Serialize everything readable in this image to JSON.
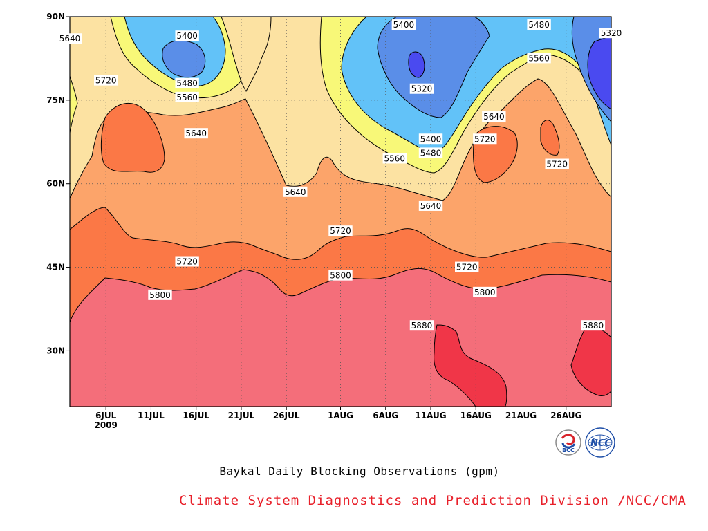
{
  "chart_data": {
    "type": "heatmap",
    "subtype": "filled-contour",
    "title": "Baykal Daily Blocking Observations (gpm)",
    "x_tick_labels": [
      "6JUL",
      "11JUL",
      "16JUL",
      "21JUL",
      "26JUL",
      "1AUG",
      "6AUG",
      "11AUG",
      "16AUG",
      "21AUG",
      "26AUG"
    ],
    "x_year_label": "2009",
    "x_range": [
      "2009-07-02",
      "2009-08-31"
    ],
    "y_tick_labels": [
      "90N",
      "75N",
      "60N",
      "45N",
      "30N"
    ],
    "y_ticks": [
      90,
      75,
      60,
      45,
      30
    ],
    "y_range": [
      20,
      90
    ],
    "grid": "dotted",
    "contour_levels": [
      5320,
      5400,
      5480,
      5560,
      5640,
      5720,
      5800,
      5880
    ],
    "fill_colors": {
      "below_5320": "#4a4af0",
      "5320_5400": "#5a8ee8",
      "5400_5480": "#62c2f8",
      "5480_5560": "#f8f878",
      "5560_5640": "#fce2a2",
      "5640_5720": "#fca46a",
      "5720_5800": "#fb7846",
      "5800_5880": "#f46e7a",
      "above_5880": "#f03648"
    },
    "contour_labels": [
      {
        "date": "2009-07-02",
        "lat": 86.0,
        "value": "5640"
      },
      {
        "date": "2009-07-06",
        "lat": 78.5,
        "value": "5720"
      },
      {
        "date": "2009-07-15",
        "lat": 86.5,
        "value": "5400"
      },
      {
        "date": "2009-07-15",
        "lat": 78.0,
        "value": "5480"
      },
      {
        "date": "2009-07-15",
        "lat": 75.5,
        "value": "5560"
      },
      {
        "date": "2009-07-16",
        "lat": 69.0,
        "value": "5640"
      },
      {
        "date": "2009-07-15",
        "lat": 46.0,
        "value": "5720"
      },
      {
        "date": "2009-07-12",
        "lat": 40.0,
        "value": "5800"
      },
      {
        "date": "2009-07-27",
        "lat": 58.5,
        "value": "5640"
      },
      {
        "date": "2009-08-01",
        "lat": 51.5,
        "value": "5720"
      },
      {
        "date": "2009-08-01",
        "lat": 43.5,
        "value": "5800"
      },
      {
        "date": "2009-08-08",
        "lat": 88.5,
        "value": "5400"
      },
      {
        "date": "2009-08-10",
        "lat": 77.0,
        "value": "5320"
      },
      {
        "date": "2009-08-07",
        "lat": 64.5,
        "value": "5560"
      },
      {
        "date": "2009-08-11",
        "lat": 68.0,
        "value": "5400"
      },
      {
        "date": "2009-08-11",
        "lat": 65.5,
        "value": "5480"
      },
      {
        "date": "2009-08-11",
        "lat": 56.0,
        "value": "5640"
      },
      {
        "date": "2009-08-10",
        "lat": 34.5,
        "value": "5880"
      },
      {
        "date": "2009-08-15",
        "lat": 45.0,
        "value": "5720"
      },
      {
        "date": "2009-08-17",
        "lat": 40.5,
        "value": "5800"
      },
      {
        "date": "2009-08-17",
        "lat": 68.0,
        "value": "5720"
      },
      {
        "date": "2009-08-18",
        "lat": 72.0,
        "value": "5640"
      },
      {
        "date": "2009-08-23",
        "lat": 88.5,
        "value": "5480"
      },
      {
        "date": "2009-08-23",
        "lat": 82.5,
        "value": "5560"
      },
      {
        "date": "2009-08-25",
        "lat": 63.5,
        "value": "5720"
      },
      {
        "date": "2009-08-31",
        "lat": 87.0,
        "value": "5320"
      },
      {
        "date": "2009-08-29",
        "lat": 34.5,
        "value": "5880"
      }
    ]
  },
  "footer": {
    "credit": "Climate System Diagnostics and Prediction Division /NCC/CMA"
  },
  "logos": {
    "left_logo_text": "BCC",
    "right_logo_text": "NCC"
  }
}
